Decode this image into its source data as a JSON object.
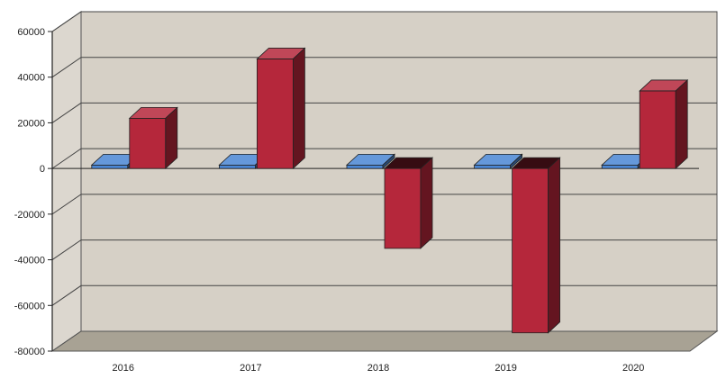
{
  "chart_data": {
    "type": "bar",
    "style": "3d-clustered-column",
    "title": "",
    "xlabel": "",
    "ylabel": "",
    "categories": [
      "2016",
      "2017",
      "2018",
      "2019",
      "2020"
    ],
    "y_ticks": [
      "60000",
      "40000",
      "20000",
      "0",
      "-20000",
      "-40000",
      "-60000",
      "-80000"
    ],
    "ylim": [
      -80000,
      60000
    ],
    "grid": true,
    "legend": "none",
    "series": [
      {
        "values": [
          1500,
          1500,
          1500,
          1500,
          1500
        ],
        "color": "#4a86d4"
      },
      {
        "values": [
          22000,
          48000,
          -35000,
          -72000,
          34000
        ],
        "color": "#b5273b"
      }
    ],
    "colors": {
      "wall": "#d6d0c6",
      "floor": "#a8a294",
      "gridline": "#444444"
    }
  }
}
